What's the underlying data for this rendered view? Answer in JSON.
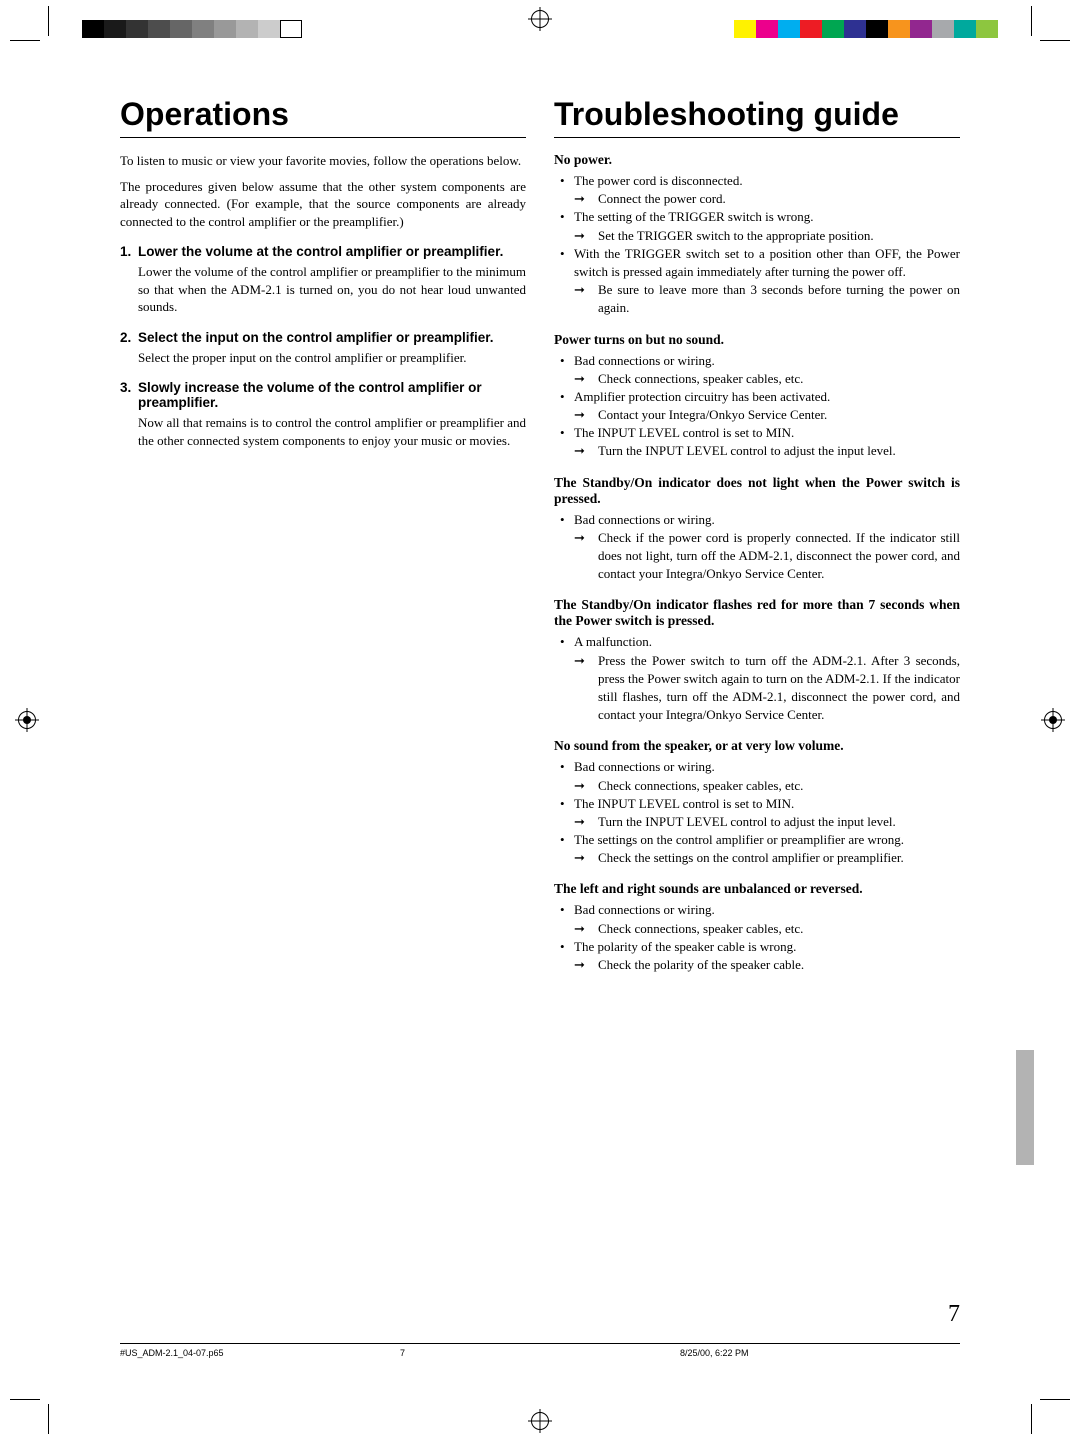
{
  "colors": {
    "text": "#000000",
    "bg": "#ffffff",
    "gray_tab": "#b3b3b3",
    "colorbar_left": [
      "#000000",
      "#1a1a1a",
      "#333333",
      "#4d4d4d",
      "#666666",
      "#808080",
      "#999999",
      "#b3b3b3",
      "#cccccc",
      "#ffffff"
    ],
    "colorbar_right": [
      "#fff200",
      "#ec008c",
      "#00aeef",
      "#ed1c24",
      "#00a651",
      "#2e3192",
      "#000000",
      "#f7941d",
      "#92278f",
      "#a7a9ac",
      "#00a99d",
      "#8dc63f"
    ]
  },
  "typography": {
    "heading_font": "Arial",
    "heading_size_pt": 24,
    "body_font": "Times New Roman",
    "body_size_pt": 10,
    "step_head_size_pt": 10,
    "step_head_weight": "bold"
  },
  "left": {
    "title": "Operations",
    "intro1": "To listen to music or view your favorite movies, follow the operations below.",
    "intro2": "The procedures given below assume that the other system components are already connected. (For example, that the source components are already connected to the control amplifier or the preamplifier.)",
    "steps": [
      {
        "num": "1.",
        "head": "Lower the volume at the control amplifier or preamplifier.",
        "body": "Lower the volume of the control amplifier or preamplifier to the minimum so that when the ADM-2.1 is turned on, you do not hear loud unwanted sounds."
      },
      {
        "num": "2.",
        "head": "Select the input on the control amplifier or preamplifier.",
        "body": "Select the proper input on the control amplifier or preamplifier."
      },
      {
        "num": "3.",
        "head": "Slowly increase the volume of the control amplifier or preamplifier.",
        "body": "Now all that remains is to control the control amplifier or preamplifier and the other connected system components to enjoy your music or movies."
      }
    ]
  },
  "right": {
    "title": "Troubleshooting guide",
    "sections": [
      {
        "head": "No power.",
        "items": [
          {
            "cause": "The power cord is disconnected.",
            "remedy": "Connect the power cord."
          },
          {
            "cause": "The setting of the TRIGGER switch is wrong.",
            "remedy": "Set the TRIGGER switch to the appropriate position."
          },
          {
            "cause": "With the TRIGGER switch set to a position other than OFF, the Power switch is pressed again immediately after turning the power off.",
            "remedy": "Be sure to leave more than 3 seconds before turning the power on again."
          }
        ]
      },
      {
        "head": "Power turns on but no sound.",
        "items": [
          {
            "cause": "Bad connections or wiring.",
            "remedy": "Check connections, speaker cables, etc."
          },
          {
            "cause": "Amplifier protection circuitry has been activated.",
            "remedy": "Contact your Integra/Onkyo Service Center."
          },
          {
            "cause": "The INPUT LEVEL control is set to MIN.",
            "remedy": "Turn the INPUT LEVEL control to adjust the input level."
          }
        ]
      },
      {
        "head": "The Standby/On indicator does not light when the Power switch is pressed.",
        "items": [
          {
            "cause": "Bad connections or wiring.",
            "remedy": "Check if the power cord is properly connected. If the indicator still does not light, turn off the ADM-2.1, disconnect the power cord, and contact your Integra/Onkyo Service Center."
          }
        ]
      },
      {
        "head": "The Standby/On indicator flashes red for more than 7 seconds when the Power switch is pressed.",
        "items": [
          {
            "cause": "A malfunction.",
            "remedy": "Press the Power switch to turn off the ADM-2.1. After 3 seconds, press the Power switch again to turn on the ADM-2.1. If the indicator still flashes, turn off the ADM-2.1, disconnect the power cord, and contact your Integra/Onkyo Service Center."
          }
        ]
      },
      {
        "head": "No sound from the speaker, or at very low volume.",
        "items": [
          {
            "cause": "Bad connections or wiring.",
            "remedy": "Check connections, speaker cables, etc."
          },
          {
            "cause": "The INPUT LEVEL control is set to MIN.",
            "remedy": "Turn the INPUT LEVEL control to adjust the input level."
          },
          {
            "cause": "The settings on the control amplifier or preamplifier are wrong.",
            "remedy": "Check the settings on the control amplifier or preamplifier."
          }
        ]
      },
      {
        "head": "The left and right sounds are unbalanced or reversed.",
        "items": [
          {
            "cause": "Bad connections or wiring.",
            "remedy": "Check connections, speaker cables, etc."
          },
          {
            "cause": "The polarity of the speaker cable is wrong.",
            "remedy": "Check the polarity of the speaker cable."
          }
        ]
      }
    ]
  },
  "page_number": "7",
  "footer": {
    "filename": "#US_ADM-2.1_04-07.p65",
    "page": "7",
    "datetime": "8/25/00, 6:22 PM"
  }
}
